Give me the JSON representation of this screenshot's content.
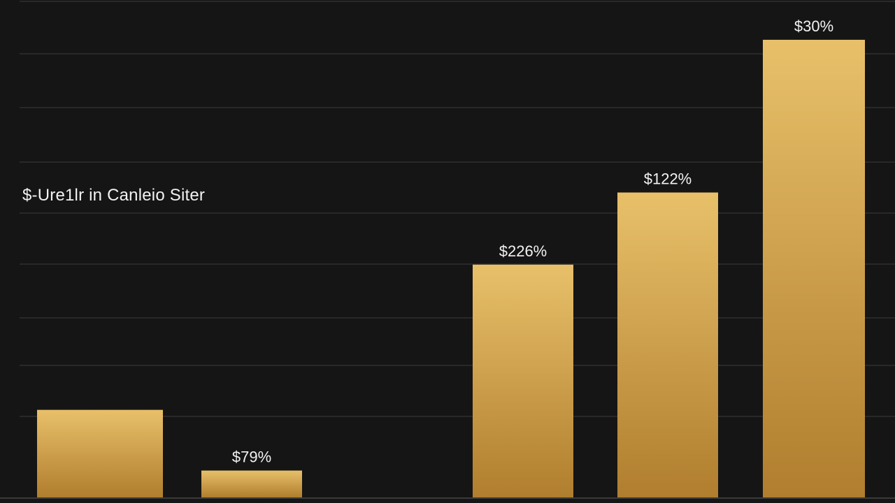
{
  "chart_data": {
    "type": "bar",
    "title": "$-Ure1lr in Canleio Siter",
    "xlabel": "",
    "ylabel": "",
    "ylim": [
      0,
      100
    ],
    "grid": true,
    "colors": {
      "background": "#151515",
      "grid": "#2e2e2e",
      "bar_top": "#e8c06a",
      "bar_bottom": "#b07e2e",
      "label": "#f2f2f2"
    },
    "categories": [
      "",
      "",
      "",
      "",
      "",
      ""
    ],
    "values": [
      17.6,
      5.4,
      0,
      46.8,
      61.3,
      92.0
    ],
    "data_labels": [
      "",
      "$79%",
      "",
      "$226%",
      "$122%",
      "$30%"
    ]
  }
}
